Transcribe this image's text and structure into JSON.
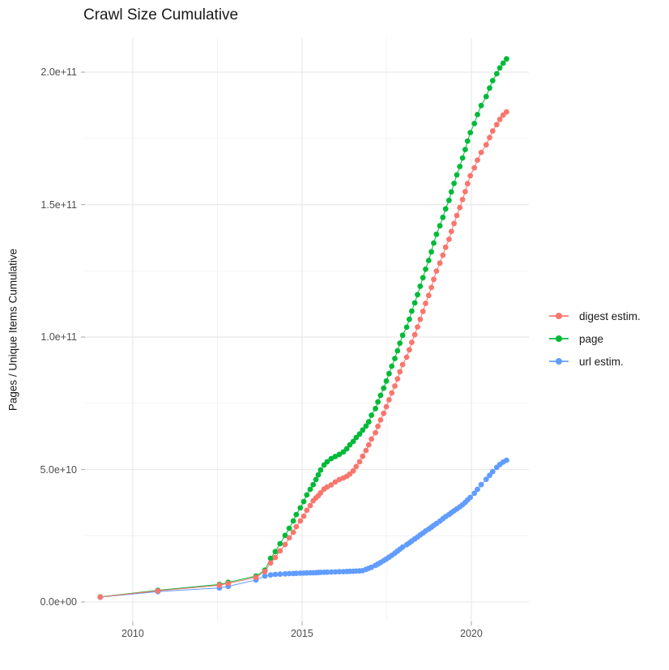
{
  "title": "Crawl Size Cumulative",
  "axes": {
    "y_label": "Pages / Unique Items Cumulative",
    "y_tick_labels": [
      "0.0e+00",
      "5.0e+10",
      "1.0e+11",
      "1.5e+11",
      "2.0e+11"
    ],
    "x_tick_labels": [
      "2010",
      "2015",
      "2020"
    ]
  },
  "legend": {
    "items": [
      {
        "label": "digest estim.",
        "color": "#F8766D"
      },
      {
        "label": "page",
        "color": "#00BA38"
      },
      {
        "label": "url estim.",
        "color": "#619CFF"
      }
    ]
  },
  "colors": {
    "background": "#ffffff",
    "grid_major": "#ebebeb",
    "grid_minor": "#f3f3f3",
    "tick": "#b3b3b3",
    "tick_text": "#4d4d4d",
    "text": "#1a1a1a"
  },
  "chart_data": {
    "type": "line",
    "markers": true,
    "title": "Crawl Size Cumulative",
    "xlabel": "",
    "ylabel": "Pages / Unique Items Cumulative",
    "y_unit": "items (point values given in 1e9, i.e. value 205 = 2.05e+11)",
    "x_domain": [
      2008.59,
      2021.7
    ],
    "y_domain": [
      -7.34,
      212.87
    ],
    "x_major_breaks": [
      2010,
      2015,
      2020
    ],
    "x_minor_breaks": [
      2012.5,
      2017.5
    ],
    "y_major_breaks": [
      0,
      50,
      100,
      150,
      200
    ],
    "y_minor_breaks": [
      25,
      75,
      125,
      175
    ],
    "grid": true,
    "legend_position": "right",
    "draw_order": [
      "page",
      "url estim.",
      "digest estim."
    ],
    "series": [
      {
        "name": "digest estim.",
        "color": "#F8766D",
        "points": [
          [
            2009.04,
            1.85
          ],
          [
            2010.74,
            4.2
          ],
          [
            2012.56,
            6.3
          ],
          [
            2012.82,
            7.0
          ],
          [
            2013.64,
            9.3
          ],
          [
            2013.9,
            11.5
          ],
          [
            2014.07,
            14.7
          ],
          [
            2014.21,
            16.8
          ],
          [
            2014.35,
            19.3
          ],
          [
            2014.5,
            21.7
          ],
          [
            2014.62,
            24.2
          ],
          [
            2014.74,
            26.3
          ],
          [
            2014.83,
            28.4
          ],
          [
            2014.95,
            30.6
          ],
          [
            2015.05,
            32.4
          ],
          [
            2015.14,
            34.6
          ],
          [
            2015.24,
            36.4
          ],
          [
            2015.33,
            38.2
          ],
          [
            2015.41,
            39.3
          ],
          [
            2015.48,
            40.1
          ],
          [
            2015.55,
            41.2
          ],
          [
            2015.65,
            42.6
          ],
          [
            2015.74,
            43.4
          ],
          [
            2015.86,
            44.2
          ],
          [
            2015.98,
            45.3
          ],
          [
            2016.1,
            46.2
          ],
          [
            2016.22,
            46.8
          ],
          [
            2016.32,
            47.4
          ],
          [
            2016.41,
            48.3
          ],
          [
            2016.51,
            49.5
          ],
          [
            2016.6,
            51.1
          ],
          [
            2016.7,
            52.9
          ],
          [
            2016.79,
            55.0
          ],
          [
            2016.89,
            57.2
          ],
          [
            2016.97,
            59.3
          ],
          [
            2017.05,
            61.5
          ],
          [
            2017.17,
            63.9
          ],
          [
            2017.24,
            66.3
          ],
          [
            2017.32,
            68.7
          ],
          [
            2017.41,
            71.2
          ],
          [
            2017.49,
            73.7
          ],
          [
            2017.57,
            76.3
          ],
          [
            2017.65,
            78.9
          ],
          [
            2017.74,
            81.5
          ],
          [
            2017.82,
            84.2
          ],
          [
            2017.89,
            86.9
          ],
          [
            2017.97,
            89.6
          ],
          [
            2018.09,
            92.4
          ],
          [
            2018.17,
            95.2
          ],
          [
            2018.24,
            98.0
          ],
          [
            2018.33,
            100.9
          ],
          [
            2018.41,
            103.8
          ],
          [
            2018.49,
            106.7
          ],
          [
            2018.57,
            109.7
          ],
          [
            2018.65,
            112.7
          ],
          [
            2018.74,
            115.7
          ],
          [
            2018.82,
            118.7
          ],
          [
            2018.89,
            121.8
          ],
          [
            2018.97,
            124.9
          ],
          [
            2019.07,
            127.9
          ],
          [
            2019.16,
            130.9
          ],
          [
            2019.24,
            133.9
          ],
          [
            2019.34,
            136.9
          ],
          [
            2019.41,
            139.9
          ],
          [
            2019.49,
            142.9
          ],
          [
            2019.57,
            145.9
          ],
          [
            2019.66,
            148.9
          ],
          [
            2019.74,
            151.9
          ],
          [
            2019.82,
            154.9
          ],
          [
            2019.89,
            157.9
          ],
          [
            2019.97,
            160.9
          ],
          [
            2020.09,
            163.9
          ],
          [
            2020.18,
            166.8
          ],
          [
            2020.29,
            169.7
          ],
          [
            2020.44,
            172.6
          ],
          [
            2020.54,
            175.3
          ],
          [
            2020.63,
            177.8
          ],
          [
            2020.75,
            180.2
          ],
          [
            2020.84,
            182.2
          ],
          [
            2020.94,
            183.8
          ],
          [
            2021.04,
            185.0
          ]
        ]
      },
      {
        "name": "page",
        "color": "#00BA38",
        "points": [
          [
            2009.04,
            1.9
          ],
          [
            2010.74,
            4.4
          ],
          [
            2012.56,
            6.6
          ],
          [
            2012.82,
            7.4
          ],
          [
            2013.64,
            9.8
          ],
          [
            2013.9,
            12.0
          ],
          [
            2014.07,
            16.5
          ],
          [
            2014.21,
            19.0
          ],
          [
            2014.35,
            22.0
          ],
          [
            2014.5,
            25.1
          ],
          [
            2014.62,
            27.8
          ],
          [
            2014.74,
            30.6
          ],
          [
            2014.83,
            33.0
          ],
          [
            2014.95,
            35.5
          ],
          [
            2015.05,
            37.9
          ],
          [
            2015.14,
            40.4
          ],
          [
            2015.24,
            42.5
          ],
          [
            2015.33,
            44.3
          ],
          [
            2015.41,
            46.2
          ],
          [
            2015.48,
            48.0
          ],
          [
            2015.55,
            49.8
          ],
          [
            2015.65,
            51.7
          ],
          [
            2015.74,
            52.9
          ],
          [
            2015.86,
            54.1
          ],
          [
            2015.98,
            54.9
          ],
          [
            2016.1,
            55.7
          ],
          [
            2016.22,
            56.6
          ],
          [
            2016.32,
            57.8
          ],
          [
            2016.41,
            59.3
          ],
          [
            2016.51,
            60.6
          ],
          [
            2016.6,
            62.1
          ],
          [
            2016.7,
            63.4
          ],
          [
            2016.79,
            64.9
          ],
          [
            2016.89,
            66.4
          ],
          [
            2016.97,
            68.0
          ],
          [
            2017.05,
            70.5
          ],
          [
            2017.17,
            73.0
          ],
          [
            2017.24,
            75.5
          ],
          [
            2017.32,
            78.0
          ],
          [
            2017.41,
            80.7
          ],
          [
            2017.49,
            83.4
          ],
          [
            2017.57,
            86.2
          ],
          [
            2017.65,
            89.0
          ],
          [
            2017.74,
            91.9
          ],
          [
            2017.82,
            94.8
          ],
          [
            2017.89,
            97.7
          ],
          [
            2017.97,
            100.7
          ],
          [
            2018.09,
            103.7
          ],
          [
            2018.17,
            106.7
          ],
          [
            2018.24,
            109.8
          ],
          [
            2018.33,
            112.9
          ],
          [
            2018.41,
            116.0
          ],
          [
            2018.49,
            119.2
          ],
          [
            2018.57,
            122.4
          ],
          [
            2018.65,
            125.6
          ],
          [
            2018.74,
            128.9
          ],
          [
            2018.82,
            132.2
          ],
          [
            2018.89,
            135.5
          ],
          [
            2018.97,
            138.8
          ],
          [
            2019.07,
            142.0
          ],
          [
            2019.16,
            145.2
          ],
          [
            2019.24,
            148.4
          ],
          [
            2019.34,
            151.6
          ],
          [
            2019.41,
            154.8
          ],
          [
            2019.49,
            158.0
          ],
          [
            2019.57,
            161.2
          ],
          [
            2019.66,
            164.4
          ],
          [
            2019.74,
            167.6
          ],
          [
            2019.82,
            170.8
          ],
          [
            2019.89,
            174.0
          ],
          [
            2019.97,
            177.2
          ],
          [
            2020.09,
            180.6
          ],
          [
            2020.18,
            184.0
          ],
          [
            2020.29,
            187.4
          ],
          [
            2020.44,
            190.8
          ],
          [
            2020.54,
            194.0
          ],
          [
            2020.63,
            196.8
          ],
          [
            2020.75,
            199.4
          ],
          [
            2020.84,
            201.6
          ],
          [
            2020.94,
            203.4
          ],
          [
            2021.04,
            205.0
          ]
        ]
      },
      {
        "name": "url estim.",
        "color": "#619CFF",
        "points": [
          [
            2009.04,
            1.8
          ],
          [
            2010.74,
            3.9
          ],
          [
            2012.56,
            5.3
          ],
          [
            2012.82,
            5.9
          ],
          [
            2013.64,
            8.3
          ],
          [
            2013.9,
            9.8
          ],
          [
            2014.07,
            10.2
          ],
          [
            2014.21,
            10.4
          ],
          [
            2014.35,
            10.5
          ],
          [
            2014.5,
            10.6
          ],
          [
            2014.62,
            10.7
          ],
          [
            2014.74,
            10.75
          ],
          [
            2014.83,
            10.8
          ],
          [
            2014.95,
            10.85
          ],
          [
            2015.05,
            10.9
          ],
          [
            2015.14,
            10.95
          ],
          [
            2015.24,
            11.0
          ],
          [
            2015.33,
            11.0
          ],
          [
            2015.41,
            11.05
          ],
          [
            2015.48,
            11.1
          ],
          [
            2015.55,
            11.15
          ],
          [
            2015.65,
            11.2
          ],
          [
            2015.74,
            11.25
          ],
          [
            2015.86,
            11.3
          ],
          [
            2015.98,
            11.35
          ],
          [
            2016.1,
            11.4
          ],
          [
            2016.22,
            11.45
          ],
          [
            2016.32,
            11.5
          ],
          [
            2016.41,
            11.55
          ],
          [
            2016.51,
            11.6
          ],
          [
            2016.6,
            11.65
          ],
          [
            2016.7,
            11.7
          ],
          [
            2016.79,
            11.8
          ],
          [
            2016.89,
            12.3
          ],
          [
            2016.97,
            12.7
          ],
          [
            2017.05,
            13.1
          ],
          [
            2017.17,
            13.8
          ],
          [
            2017.24,
            14.3
          ],
          [
            2017.32,
            14.9
          ],
          [
            2017.41,
            15.6
          ],
          [
            2017.49,
            16.2
          ],
          [
            2017.57,
            16.9
          ],
          [
            2017.65,
            17.6
          ],
          [
            2017.74,
            18.4
          ],
          [
            2017.82,
            19.2
          ],
          [
            2017.89,
            19.9
          ],
          [
            2017.97,
            20.7
          ],
          [
            2018.09,
            21.6
          ],
          [
            2018.17,
            22.3
          ],
          [
            2018.24,
            23.0
          ],
          [
            2018.33,
            23.8
          ],
          [
            2018.41,
            24.5
          ],
          [
            2018.49,
            25.3
          ],
          [
            2018.57,
            26.0
          ],
          [
            2018.65,
            26.8
          ],
          [
            2018.74,
            27.5
          ],
          [
            2018.82,
            28.2
          ],
          [
            2018.89,
            28.9
          ],
          [
            2018.97,
            29.6
          ],
          [
            2019.07,
            30.5
          ],
          [
            2019.16,
            31.4
          ],
          [
            2019.24,
            32.2
          ],
          [
            2019.34,
            33.0
          ],
          [
            2019.41,
            33.7
          ],
          [
            2019.49,
            34.4
          ],
          [
            2019.57,
            35.1
          ],
          [
            2019.66,
            35.9
          ],
          [
            2019.74,
            36.7
          ],
          [
            2019.82,
            37.6
          ],
          [
            2019.89,
            38.5
          ],
          [
            2019.97,
            39.5
          ],
          [
            2020.09,
            41.0
          ],
          [
            2020.18,
            42.5
          ],
          [
            2020.29,
            44.3
          ],
          [
            2020.44,
            46.3
          ],
          [
            2020.54,
            47.8
          ],
          [
            2020.63,
            49.2
          ],
          [
            2020.75,
            50.8
          ],
          [
            2020.84,
            51.9
          ],
          [
            2020.94,
            52.8
          ],
          [
            2021.04,
            53.5
          ]
        ]
      }
    ]
  }
}
